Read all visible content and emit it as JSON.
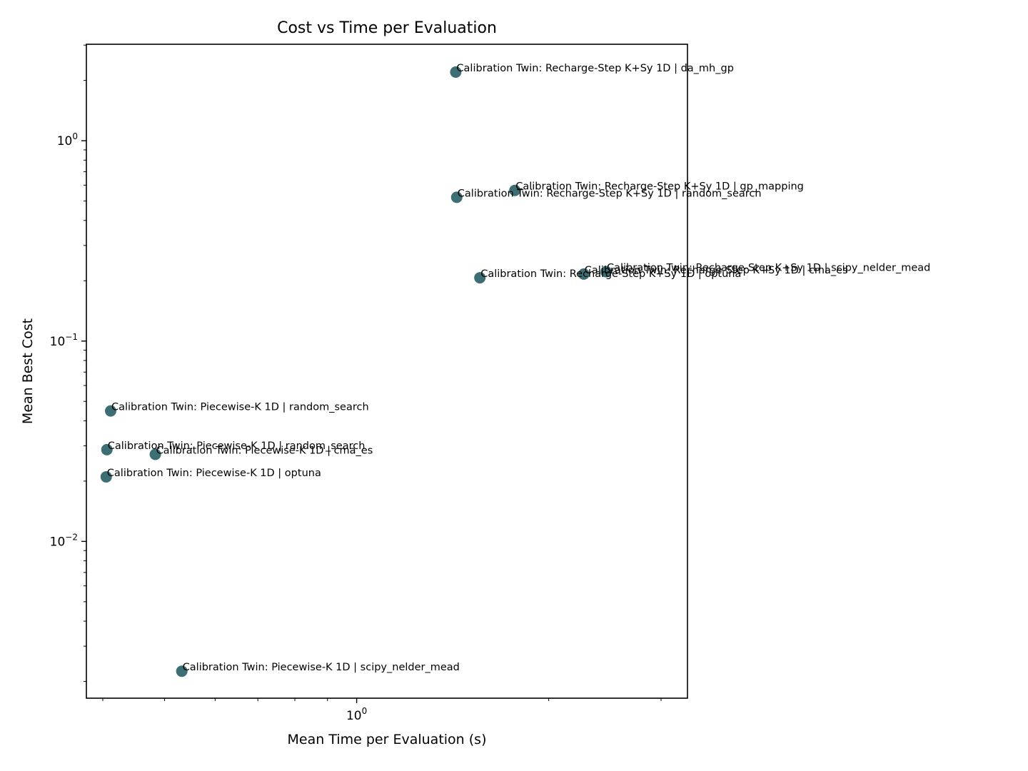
{
  "chart_data": {
    "type": "scatter",
    "title": "Cost vs Time per Evaluation",
    "xlabel": "Mean Time per Evaluation (s)",
    "ylabel": "Mean Best Cost",
    "xscale": "log",
    "yscale": "log",
    "xlim": [
      0.377,
      3.3
    ],
    "ylim": [
      0.00165,
      3.03
    ],
    "grid": false,
    "marker_color": "#3d6e73",
    "xticks": [
      {
        "base": "10",
        "exp": "0",
        "value": 1
      }
    ],
    "yticks": [
      {
        "base": "10",
        "exp": "0",
        "value": 1
      },
      {
        "base": "10",
        "exp": "−1",
        "value": 0.1
      },
      {
        "base": "10",
        "exp": "−2",
        "value": 0.01
      }
    ],
    "points": [
      {
        "x": 1.43,
        "y": 2.2,
        "label": "Calibration Twin: Recharge-Step K+Sy 1D | da_mh_gp"
      },
      {
        "x": 1.77,
        "y": 0.565,
        "label": "Calibration Twin: Recharge-Step K+Sy 1D | gp_mapping"
      },
      {
        "x": 1.435,
        "y": 0.522,
        "label": "Calibration Twin: Recharge-Step K+Sy 1D | random_search"
      },
      {
        "x": 1.56,
        "y": 0.207,
        "label": "Calibration Twin: Recharge-Step K+Sy 1D | optuna"
      },
      {
        "x": 2.27,
        "y": 0.216,
        "label": "Calibration Twin: Recharge-Step K+Sy 1D | cma_es"
      },
      {
        "x": 2.46,
        "y": 0.222,
        "label": "Calibration Twin: Recharge-Step K+Sy 1D | scipy_nelder_mead"
      },
      {
        "x": 0.4115,
        "y": 0.0448,
        "label": "Calibration Twin: Piecewise-K 1D | random_search"
      },
      {
        "x": 0.406,
        "y": 0.0287,
        "label": "Calibration Twin: Piecewise-K 1D | random_search"
      },
      {
        "x": 0.4835,
        "y": 0.0272,
        "label": "Calibration Twin: Piecewise-K 1D | cma_es"
      },
      {
        "x": 0.405,
        "y": 0.021,
        "label": "Calibration Twin: Piecewise-K 1D | optuna"
      },
      {
        "x": 0.532,
        "y": 0.00225,
        "label": "Calibration Twin: Piecewise-K 1D | scipy_nelder_mead"
      }
    ]
  }
}
